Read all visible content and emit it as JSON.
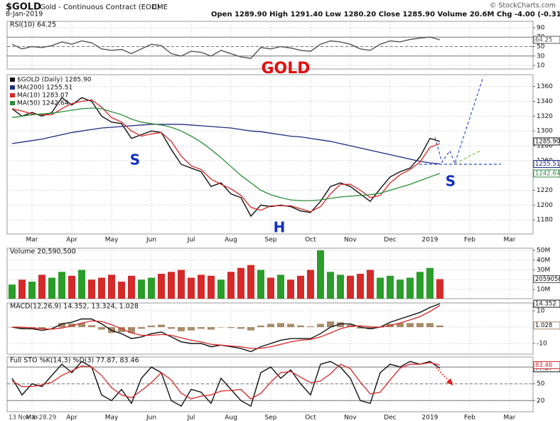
{
  "header": {
    "symbol": "$GOLD",
    "description": "Gold - Continuous Contract (EOD)",
    "exchange": "CME",
    "date": "8-Jan-2019",
    "quote": "Open 1289.90 High 1291.40 Low 1280.20 Close 1285.90 Volume 20.6M Chg -4.00 (-0.31%)",
    "credit": "© StockCharts.com"
  },
  "footer": {
    "cursor": "13 Nov Y:-28.29"
  },
  "chart_data": [
    {
      "type": "line",
      "legend": "RSI(10) 64.25",
      "ylim": [
        2.5,
        103.5
      ],
      "yticks": [
        10,
        30,
        50,
        70,
        90
      ],
      "reference_lines": [
        30,
        70
      ],
      "mid_line": 50,
      "annotations": [
        {
          "text": "GOLD",
          "color": "#e01010"
        }
      ],
      "series": [
        {
          "color": "#555555",
          "last": "64.25",
          "values": [
            55,
            45,
            50,
            48,
            52,
            60,
            55,
            62,
            58,
            45,
            42,
            44,
            35,
            45,
            55,
            52,
            35,
            30,
            40,
            38,
            30,
            42,
            35,
            28,
            25,
            48,
            45,
            50,
            47,
            42,
            40,
            55,
            62,
            60,
            55,
            45,
            42,
            55,
            62,
            60,
            65,
            68,
            70,
            64.25,
            null,
            null,
            null,
            null,
            null,
            null,
            null,
            null,
            null
          ]
        }
      ]
    },
    {
      "type": "line",
      "ylim": [
        1161,
        1376
      ],
      "yticks": [
        1180,
        1200,
        1220,
        1240,
        1260,
        1280,
        1300,
        1320,
        1340,
        1360
      ],
      "grid": true,
      "categories": [
        null,
        null,
        "Mar",
        null,
        null,
        null,
        "Apr",
        null,
        null,
        null,
        "May",
        null,
        null,
        null,
        "Jun",
        null,
        null,
        null,
        "Jul",
        null,
        null,
        null,
        "Aug",
        null,
        null,
        null,
        "Sep",
        null,
        null,
        null,
        "Oct",
        null,
        null,
        null,
        "Nov",
        null,
        null,
        null,
        "Dec",
        null,
        null,
        null,
        "2019",
        null,
        null,
        null,
        "Feb",
        null,
        null,
        null,
        "Mar",
        null,
        null
      ],
      "annotations": [
        {
          "text": "S",
          "color": "#1030c0"
        },
        {
          "text": "H",
          "color": "#1030c0"
        },
        {
          "text": "S",
          "color": "#1030c0"
        }
      ],
      "series": [
        {
          "name": "$GOLD (Daily) 1285.90",
          "color": "#111111",
          "last": "1285.90",
          "values": [
            1330,
            1320,
            1325,
            1320,
            1325,
            1345,
            1335,
            1345,
            1340,
            1320,
            1312,
            1310,
            1290,
            1295,
            1300,
            1298,
            1275,
            1255,
            1250,
            1245,
            1225,
            1230,
            1215,
            1210,
            1185,
            1200,
            1198,
            1200,
            1198,
            1192,
            1190,
            1205,
            1225,
            1230,
            1225,
            1215,
            1205,
            1222,
            1238,
            1245,
            1250,
            1265,
            1290,
            1285.9,
            null,
            null,
            null,
            null,
            null,
            null,
            null,
            null,
            null
          ]
        },
        {
          "name": "MA(200) 1255.51",
          "color": "#1f2a80",
          "last": "1255.51",
          "values": [
            1283,
            1285,
            1287,
            1289,
            1292,
            1295,
            1298,
            1300,
            1302,
            1304,
            1305,
            1306,
            1307,
            1308,
            1309,
            1309,
            1309,
            1309,
            1308,
            1307,
            1306,
            1305,
            1304,
            1302,
            1300,
            1299,
            1297,
            1295,
            1293,
            1292,
            1290,
            1288,
            1286,
            1283,
            1280,
            1277,
            1274,
            1271,
            1268,
            1265,
            1262,
            1259,
            1257,
            1255.51,
            null,
            null,
            null,
            null,
            null,
            null,
            null,
            null,
            null
          ]
        },
        {
          "name": "MA(10) 1283.07",
          "color": "#d62728",
          "values": [
            1330,
            1327,
            1323,
            1322,
            1322,
            1330,
            1337,
            1340,
            1342,
            1332,
            1318,
            1312,
            1300,
            1293,
            1296,
            1298,
            1286,
            1266,
            1253,
            1248,
            1235,
            1228,
            1222,
            1213,
            1197,
            1193,
            1199,
            1199,
            1199,
            1195,
            1191,
            1198,
            1215,
            1228,
            1228,
            1220,
            1210,
            1213,
            1230,
            1241,
            1248,
            1258,
            1278,
            1283.07,
            null,
            null,
            null,
            null,
            null,
            null,
            null,
            null,
            null
          ]
        },
        {
          "name": "MA(50) 1242.64",
          "color": "#2e8b3a",
          "last": "1242.64",
          "values": [
            1318,
            1320,
            1322,
            1323,
            1324,
            1326,
            1328,
            1330,
            1331,
            1330,
            1326,
            1322,
            1316,
            1312,
            1310,
            1308,
            1305,
            1300,
            1293,
            1285,
            1275,
            1264,
            1252,
            1240,
            1230,
            1220,
            1214,
            1210,
            1207,
            1206,
            1206,
            1207,
            1209,
            1211,
            1212,
            1213,
            1214,
            1216,
            1220,
            1224,
            1228,
            1233,
            1238,
            1242.64,
            null,
            null,
            null,
            null,
            null,
            null,
            null,
            null,
            null
          ]
        }
      ]
    },
    {
      "type": "bar",
      "legend": "Volume 20,590,500",
      "last": "20590500",
      "up_color": "#2a9d2a",
      "down_color": "#d42a2a",
      "ylim": [
        550000,
        52200000
      ],
      "yticks": [
        {
          "value": 10000000,
          "label": "10M"
        },
        {
          "value": 20000000,
          "label": "20M"
        },
        {
          "value": 30000000,
          "label": "30M"
        },
        {
          "value": 40000000,
          "label": "40M"
        },
        {
          "value": 50000000,
          "label": "50M"
        }
      ],
      "values": [
        15000000,
        20000000,
        18000000,
        25000000,
        22000000,
        28000000,
        24000000,
        30000000,
        20000000,
        22000000,
        25000000,
        18000000,
        24000000,
        20000000,
        22000000,
        26000000,
        28000000,
        30000000,
        22000000,
        25000000,
        24000000,
        20000000,
        28000000,
        32000000,
        35000000,
        30000000,
        22000000,
        25000000,
        20000000,
        24000000,
        30000000,
        50000000,
        28000000,
        25000000,
        24000000,
        26000000,
        30000000,
        22000000,
        24000000,
        20000000,
        22000000,
        28000000,
        32000000,
        20590500,
        null,
        null,
        null,
        null,
        null,
        null,
        null,
        null,
        null
      ]
    },
    {
      "type": "line",
      "legend": "MACD(12,26,9) 14.352, 13.324, 1.028",
      "ylim": [
        -16.5,
        14.8
      ],
      "yticks": [
        -10,
        0,
        10
      ],
      "histogram": {
        "color": "#a88a68",
        "last": "1.028",
        "values": [
          0,
          -1,
          -0.5,
          -1,
          0.2,
          2.5,
          2.2,
          2.5,
          1.2,
          -1.5,
          -3.5,
          -3,
          -3.5,
          -1,
          1,
          1.5,
          -1,
          -2.5,
          -2,
          -1,
          -1.5,
          0,
          -0.5,
          -1,
          -2,
          1,
          2,
          2.5,
          2,
          1,
          0.5,
          2,
          3.5,
          3,
          1.5,
          -0.8,
          -1.2,
          0,
          2,
          2.5,
          2.5,
          2.5,
          2.5,
          1.028,
          null,
          null,
          null,
          null,
          null,
          null,
          null,
          null,
          null
        ]
      },
      "series": [
        {
          "color": "#111111",
          "last": "14.352",
          "values": [
            0,
            -1,
            -1,
            -2,
            -1,
            2,
            3,
            5,
            5,
            2,
            -2,
            -4,
            -7,
            -6,
            -4,
            -3,
            -6,
            -9,
            -10,
            -10,
            -12,
            -11,
            -12,
            -13,
            -15,
            -12,
            -10,
            -8,
            -7,
            -7,
            -7,
            -4,
            0,
            2,
            2,
            0,
            -1,
            0,
            3,
            5,
            7,
            9,
            12,
            14.352,
            null,
            null,
            null,
            null,
            null,
            null,
            null,
            null,
            null
          ]
        },
        {
          "color": "#d62728",
          "values": [
            0,
            0,
            -0.5,
            -1,
            -1.2,
            -0.5,
            0.8,
            2.5,
            3.8,
            3.5,
            1.5,
            -1,
            -3.5,
            -5,
            -5,
            -4.5,
            -5,
            -6.5,
            -8,
            -9,
            -10.5,
            -11,
            -11.5,
            -12,
            -13,
            -13,
            -12,
            -10.5,
            -9,
            -8,
            -7.5,
            -6,
            -3.5,
            -1,
            0.5,
            0.8,
            0.2,
            0,
            1,
            2.5,
            4.5,
            6.5,
            9.5,
            13.324,
            null,
            null,
            null,
            null,
            null,
            null,
            null,
            null,
            null
          ]
        }
      ]
    },
    {
      "type": "line",
      "legend": "Full STO %K(14,3) %D(3) 77.87, 83.46",
      "ylim": [
        0,
        98
      ],
      "yticks": [
        20,
        50,
        80
      ],
      "reference_lines": [
        20,
        80
      ],
      "mid_line": 50,
      "categories": [
        null,
        null,
        "Mar",
        null,
        null,
        null,
        "Apr",
        null,
        null,
        null,
        "May",
        null,
        null,
        null,
        "Jun",
        null,
        null,
        null,
        "Jul",
        null,
        null,
        null,
        "Aug",
        null,
        null,
        null,
        "Sep",
        null,
        null,
        null,
        "Oct",
        null,
        null,
        null,
        "Nov",
        null,
        null,
        null,
        "Dec",
        null,
        null,
        null,
        "2019",
        null,
        null,
        null,
        "Feb",
        null,
        null,
        null,
        "Mar",
        null,
        null
      ],
      "series": [
        {
          "color": "#111111",
          "last": "77.87",
          "values": [
            60,
            30,
            50,
            45,
            65,
            85,
            70,
            90,
            80,
            30,
            20,
            40,
            15,
            60,
            80,
            70,
            20,
            10,
            40,
            35,
            15,
            60,
            40,
            20,
            10,
            70,
            80,
            60,
            75,
            50,
            30,
            85,
            90,
            80,
            60,
            20,
            15,
            70,
            85,
            80,
            90,
            85,
            90,
            77.87,
            null,
            null,
            null,
            null,
            null,
            null,
            null,
            null,
            null
          ]
        },
        {
          "color": "#d62728",
          "last": "83.46",
          "values": [
            55,
            45,
            45,
            48,
            53,
            65,
            73,
            82,
            80,
            65,
            43,
            30,
            25,
            38,
            52,
            70,
            57,
            33,
            23,
            28,
            30,
            37,
            38,
            40,
            23,
            33,
            53,
            70,
            72,
            62,
            52,
            55,
            68,
            85,
            77,
            53,
            32,
            35,
            57,
            78,
            85,
            85,
            88,
            83.46,
            null,
            null,
            null,
            null,
            null,
            null,
            null,
            null,
            null
          ]
        }
      ]
    }
  ]
}
